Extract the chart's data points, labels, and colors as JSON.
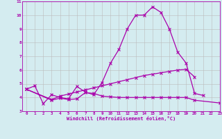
{
  "xlabel": "Windchill (Refroidissement éolien,°C)",
  "x_values": [
    0,
    1,
    2,
    3,
    4,
    5,
    6,
    7,
    8,
    9,
    10,
    11,
    12,
    13,
    14,
    15,
    16,
    17,
    18,
    19,
    20,
    21,
    22,
    23
  ],
  "line1_x": [
    0,
    1,
    2,
    3,
    4,
    5,
    6,
    7,
    8,
    9,
    10,
    11,
    12,
    13,
    14,
    15,
    16,
    17,
    18,
    19,
    20,
    21
  ],
  "line1_y": [
    4.6,
    4.85,
    3.55,
    4.2,
    4.0,
    3.9,
    4.8,
    4.4,
    4.2,
    5.1,
    6.5,
    7.5,
    9.0,
    10.0,
    10.0,
    10.6,
    10.2,
    9.0,
    7.3,
    6.5,
    4.3,
    4.15
  ],
  "line2_x": [
    0,
    3,
    4,
    5,
    6,
    7,
    8,
    9,
    10,
    11,
    12,
    13,
    14,
    15,
    16,
    17,
    18,
    19,
    20,
    23
  ],
  "line2_y": [
    4.6,
    3.8,
    3.95,
    3.85,
    3.9,
    4.35,
    4.3,
    4.1,
    4.05,
    4.0,
    4.0,
    4.0,
    4.0,
    4.0,
    4.0,
    4.0,
    4.0,
    4.0,
    3.8,
    3.6
  ],
  "line3_x": [
    0,
    3,
    4,
    5,
    6,
    7,
    8,
    9,
    10,
    11,
    12,
    13,
    14,
    15,
    16,
    17,
    18,
    19,
    20
  ],
  "line3_y": [
    4.6,
    3.85,
    4.1,
    4.25,
    4.4,
    4.55,
    4.7,
    4.85,
    5.0,
    5.15,
    5.3,
    5.45,
    5.6,
    5.7,
    5.8,
    5.9,
    6.0,
    6.05,
    5.5
  ],
  "line_color": "#aa00aa",
  "bg_color": "#d4ecf0",
  "grid_color": "#bbbbbb",
  "ylim": [
    3,
    11
  ],
  "xlim": [
    -0.5,
    23
  ],
  "yticks": [
    3,
    4,
    5,
    6,
    7,
    8,
    9,
    10,
    11
  ],
  "xticks": [
    0,
    1,
    2,
    3,
    4,
    5,
    6,
    7,
    8,
    9,
    10,
    11,
    12,
    13,
    14,
    15,
    16,
    17,
    18,
    19,
    20,
    21,
    22,
    23
  ]
}
